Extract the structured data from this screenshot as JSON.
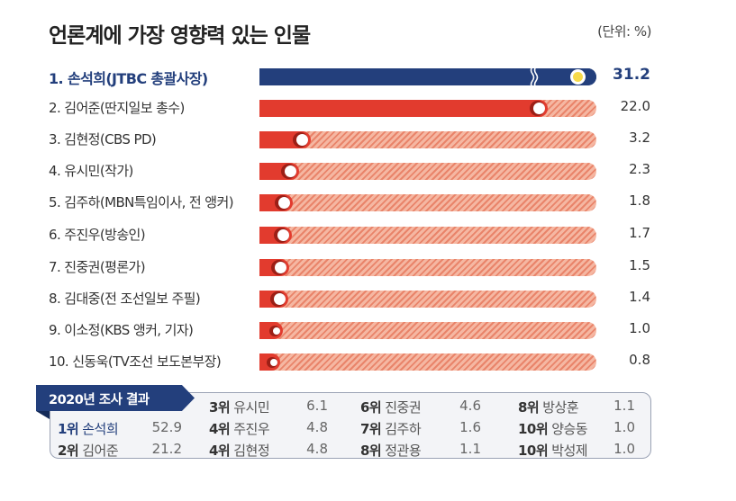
{
  "header": {
    "title": "언론계에 가장 영향력 있는 인물",
    "unit": "(단위: %)"
  },
  "rows": [
    {
      "label": "1. 손석희(JTBC 총괄사장)",
      "value": "31.2"
    },
    {
      "label": "2. 김어준(딴지일보 총수)",
      "value": "22.0"
    },
    {
      "label": "3. 김현정(CBS PD)",
      "value": "3.2"
    },
    {
      "label": "4. 유시민(작가)",
      "value": "2.3"
    },
    {
      "label": "5. 김주하(MBN특임이사, 전 앵커)",
      "value": "1.8"
    },
    {
      "label": "6. 주진우(방송인)",
      "value": "1.7"
    },
    {
      "label": "7. 진중권(평론가)",
      "value": "1.5"
    },
    {
      "label": "8. 김대중(전 조선일보 주필)",
      "value": "1.4"
    },
    {
      "label": "9. 이소정(KBS 앵커, 기자)",
      "value": "1.0"
    },
    {
      "label": "10. 신동욱(TV조선 보도본부장)",
      "value": "0.8"
    }
  ],
  "survey2020": {
    "title": "2020년 조사 결과",
    "entries": [
      {
        "rank": "1위",
        "name": "손석희",
        "value": "52.9"
      },
      {
        "rank": "2위",
        "name": "김어준",
        "value": "21.2"
      },
      {
        "rank": "3위",
        "name": "유시민",
        "value": "6.1"
      },
      {
        "rank": "4위",
        "name": "주진우",
        "value": "4.8"
      },
      {
        "rank": "4위",
        "name": "김현정",
        "value": "4.8"
      },
      {
        "rank": "6위",
        "name": "진중권",
        "value": "4.6"
      },
      {
        "rank": "7위",
        "name": "김주하",
        "value": "1.6"
      },
      {
        "rank": "8위",
        "name": "정관용",
        "value": "1.1"
      },
      {
        "rank": "8위",
        "name": "방상훈",
        "value": "1.1"
      },
      {
        "rank": "10위",
        "name": "양승동",
        "value": "1.0"
      },
      {
        "rank": "10위",
        "name": "박성제",
        "value": "1.0"
      }
    ]
  },
  "colors": {
    "primary_navy": "#233f7c",
    "bar_red": "#e23b2e",
    "track_hatch": "#f5b7a2",
    "highlight_dot": "#f7da4a"
  },
  "chart_data": {
    "type": "bar",
    "orientation": "horizontal",
    "title": "언론계에 가장 영향력 있는 인물",
    "ylabel": "",
    "xlabel": "(단위: %)",
    "categories": [
      "손석희(JTBC 총괄사장)",
      "김어준(딴지일보 총수)",
      "김현정(CBS PD)",
      "유시민(작가)",
      "김주하(MBN특임이사, 전 앵커)",
      "주진우(방송인)",
      "진중권(평론가)",
      "김대중(전 조선일보 주필)",
      "이소정(KBS 앵커, 기자)",
      "신동욱(TV조선 보도본부장)"
    ],
    "values": [
      31.2,
      22.0,
      3.2,
      2.3,
      1.8,
      1.7,
      1.5,
      1.4,
      1.0,
      0.8
    ],
    "annotations": [
      "First bar is axis-broken (wavy break mark)",
      "Inset table: 2020년 조사 결과"
    ],
    "inset_table": {
      "title": "2020년 조사 결과",
      "rows": [
        [
          "1위",
          "손석희",
          52.9
        ],
        [
          "2위",
          "김어준",
          21.2
        ],
        [
          "3위",
          "유시민",
          6.1
        ],
        [
          "4위",
          "주진우",
          4.8
        ],
        [
          "4위",
          "김현정",
          4.8
        ],
        [
          "6위",
          "진중권",
          4.6
        ],
        [
          "7위",
          "김주하",
          1.6
        ],
        [
          "8위",
          "정관용",
          1.1
        ],
        [
          "8위",
          "방상훈",
          1.1
        ],
        [
          "10위",
          "양승동",
          1.0
        ],
        [
          "10위",
          "박성제",
          1.0
        ]
      ]
    },
    "grid": false,
    "legend": "none"
  }
}
